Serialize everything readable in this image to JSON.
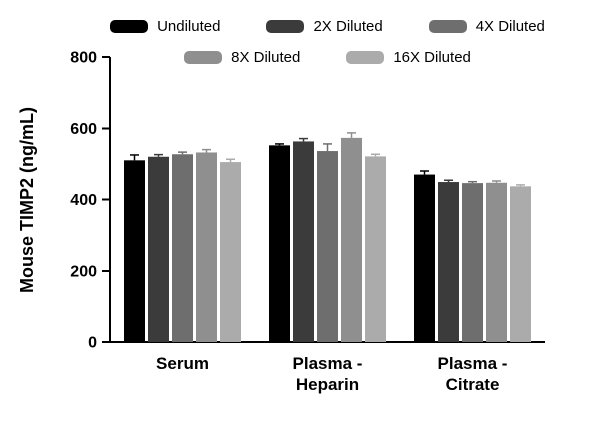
{
  "chart_data": {
    "type": "bar",
    "title": "",
    "xlabel": "",
    "ylabel": "Mouse TIMP2 (ng/mL)",
    "ylim": [
      0,
      800
    ],
    "yticks": [
      0,
      200,
      400,
      600,
      800
    ],
    "grid": false,
    "legend_position": "top",
    "categories": [
      "Serum",
      "Plasma -\nHeparin",
      "Plasma -\nCitrate"
    ],
    "series": [
      {
        "name": "Undiluted",
        "color": "#000000",
        "values": [
          510,
          552,
          470
        ],
        "errors": [
          15,
          4,
          10
        ]
      },
      {
        "name": "2X Diluted",
        "color": "#3b3b3b",
        "values": [
          520,
          563,
          449
        ],
        "errors": [
          6,
          8,
          5
        ]
      },
      {
        "name": "4X Diluted",
        "color": "#6e6e6e",
        "values": [
          527,
          536,
          446
        ],
        "errors": [
          6,
          20,
          4
        ]
      },
      {
        "name": "8X Diluted",
        "color": "#8f8f8f",
        "values": [
          532,
          573,
          447
        ],
        "errors": [
          8,
          14,
          5
        ]
      },
      {
        "name": "16X Diluted",
        "color": "#ababab",
        "values": [
          505,
          521,
          437
        ],
        "errors": [
          8,
          6,
          4
        ]
      }
    ]
  }
}
